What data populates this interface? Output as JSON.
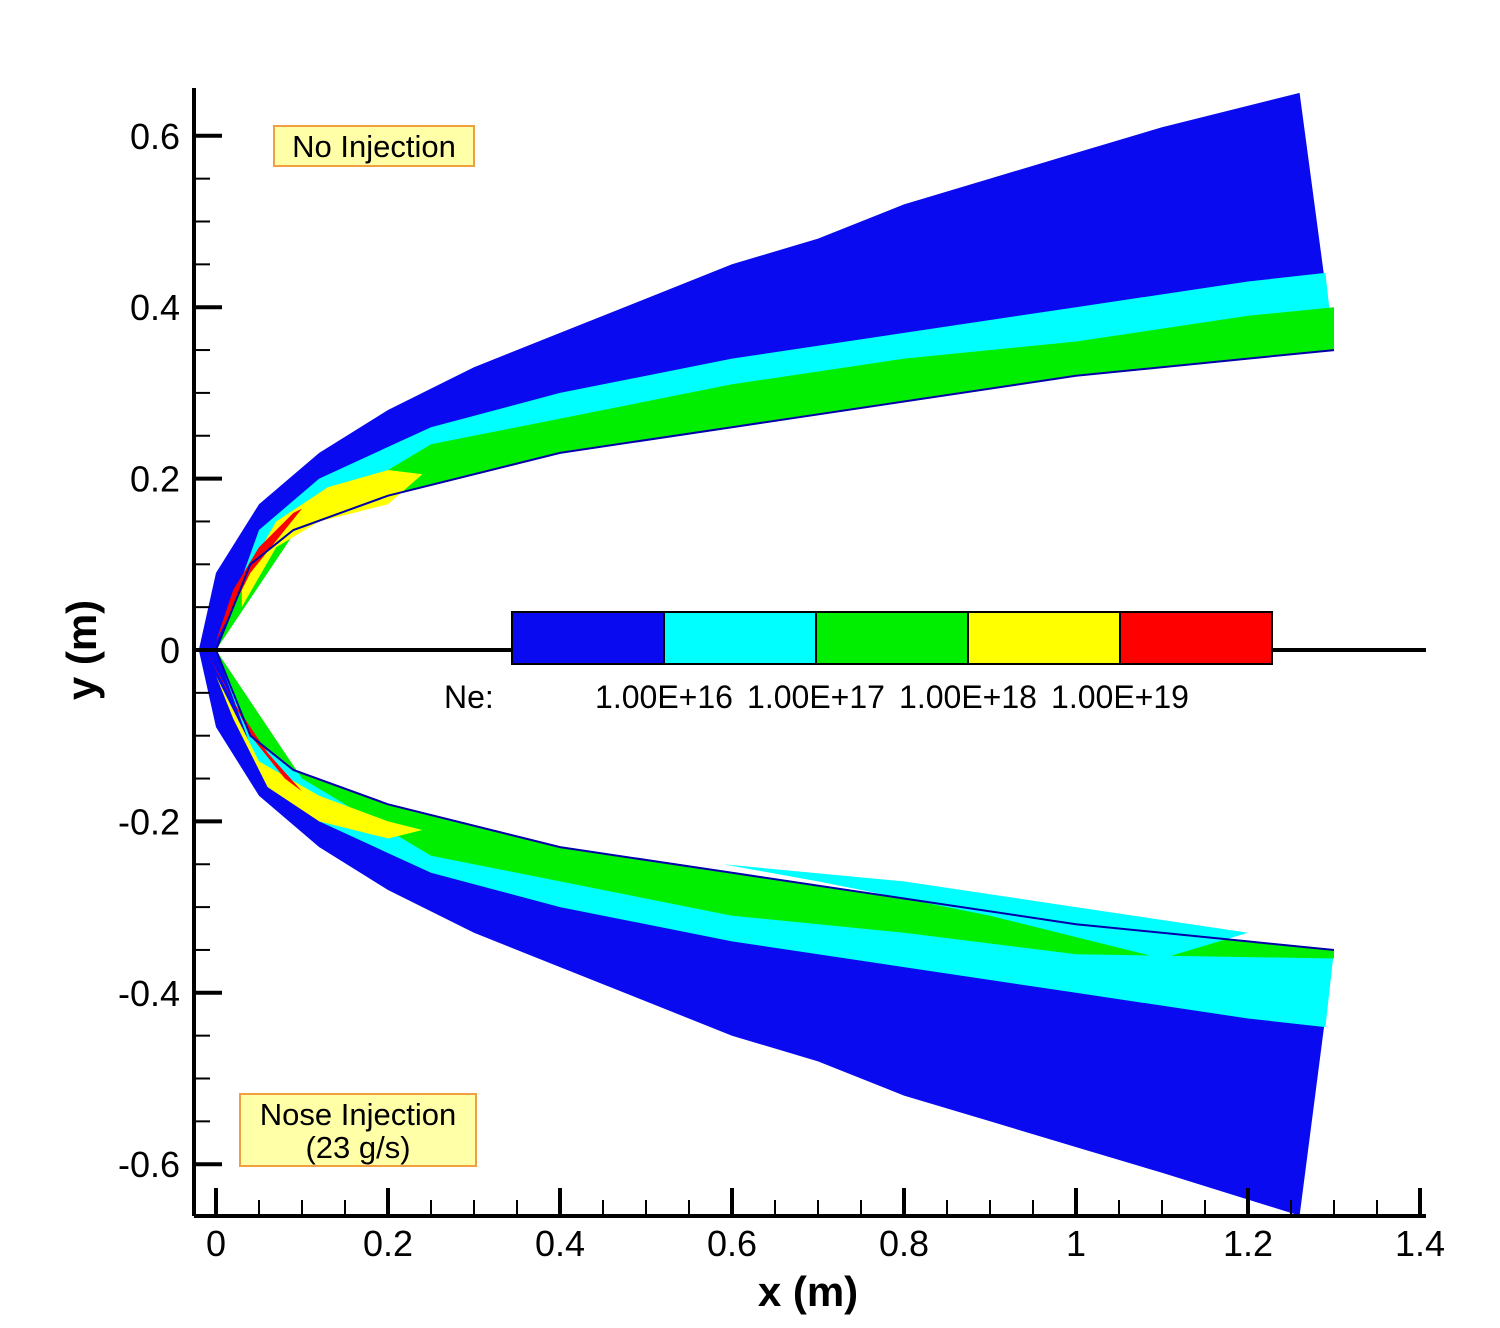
{
  "chart_data": {
    "type": "heatmap",
    "title": "",
    "xlabel": "x (m)",
    "ylabel": "y (m)",
    "xlim": [
      -0.03,
      1.4
    ],
    "ylim": [
      -0.65,
      0.65
    ],
    "x_ticks": [
      "0",
      "0.2",
      "0.4",
      "0.6",
      "0.8",
      "1",
      "1.2",
      "1.4"
    ],
    "y_ticks": [
      "0.6",
      "0.4",
      "0.2",
      "0",
      "-0.2",
      "-0.4",
      "-0.6"
    ],
    "grid": false,
    "colorbar": {
      "title": "Ne:",
      "colors": [
        "#0a0af0",
        "#00ffff",
        "#00ee00",
        "#ffff00",
        "#ff0000"
      ],
      "levels": [
        "1.00E+16",
        "1.00E+17",
        "1.00E+18",
        "1.00E+19"
      ]
    },
    "annotations": [
      {
        "text": "No Injection",
        "lines": [
          "No Injection"
        ],
        "x": 0.18,
        "y": 0.59
      },
      {
        "text": "Nose Injection (23 g/s)",
        "lines": [
          "Nose Injection",
          "(23 g/s)"
        ],
        "x": 0.16,
        "y": -0.52
      }
    ],
    "regions": {
      "no_injection_upper": {
        "shock_boundary": [
          [
            -0.02,
            0
          ],
          [
            0,
            0.09
          ],
          [
            0.05,
            0.17
          ],
          [
            0.12,
            0.23
          ],
          [
            0.2,
            0.28
          ],
          [
            0.3,
            0.33
          ],
          [
            0.4,
            0.37
          ],
          [
            0.5,
            0.41
          ],
          [
            0.6,
            0.45
          ],
          [
            0.7,
            0.48
          ],
          [
            0.8,
            0.52
          ],
          [
            0.9,
            0.55
          ],
          [
            1.0,
            0.58
          ],
          [
            1.1,
            0.61
          ],
          [
            1.26,
            0.65
          ]
        ],
        "body_surface": [
          [
            0,
            0
          ],
          [
            0.04,
            0.1
          ],
          [
            0.09,
            0.14
          ],
          [
            0.2,
            0.18
          ],
          [
            0.4,
            0.23
          ],
          [
            0.6,
            0.26
          ],
          [
            0.8,
            0.29
          ],
          [
            1.0,
            0.32
          ],
          [
            1.2,
            0.34
          ],
          [
            1.3,
            0.35
          ]
        ],
        "cyan_band_outer": [
          [
            0.05,
            0.14
          ],
          [
            0.12,
            0.2
          ],
          [
            0.25,
            0.26
          ],
          [
            0.4,
            0.3
          ],
          [
            0.6,
            0.34
          ],
          [
            0.8,
            0.37
          ],
          [
            1.0,
            0.4
          ],
          [
            1.2,
            0.43
          ],
          [
            1.29,
            0.44
          ]
        ],
        "green_band_outer": [
          [
            0.1,
            0.15
          ],
          [
            0.25,
            0.24
          ],
          [
            0.4,
            0.27
          ],
          [
            0.6,
            0.31
          ],
          [
            0.8,
            0.34
          ],
          [
            1.0,
            0.36
          ],
          [
            1.2,
            0.39
          ],
          [
            1.3,
            0.4
          ]
        ],
        "yellow_region": [
          [
            0.03,
            0.08
          ],
          [
            0.07,
            0.15
          ],
          [
            0.13,
            0.19
          ],
          [
            0.2,
            0.21
          ],
          [
            0.24,
            0.205
          ],
          [
            0.2,
            0.17
          ],
          [
            0.12,
            0.15
          ],
          [
            0.07,
            0.12
          ],
          [
            0.03,
            0.05
          ]
        ],
        "red_region": [
          [
            0,
            0.01
          ],
          [
            0.02,
            0.07
          ],
          [
            0.05,
            0.12
          ],
          [
            0.09,
            0.16
          ],
          [
            0.1,
            0.165
          ],
          [
            0.08,
            0.14
          ],
          [
            0.04,
            0.09
          ],
          [
            0.01,
            0.03
          ]
        ]
      },
      "nose_injection_lower": {
        "shock_boundary": [
          [
            -0.02,
            0
          ],
          [
            0,
            -0.09
          ],
          [
            0.05,
            -0.17
          ],
          [
            0.12,
            -0.23
          ],
          [
            0.2,
            -0.28
          ],
          [
            0.3,
            -0.33
          ],
          [
            0.4,
            -0.37
          ],
          [
            0.5,
            -0.41
          ],
          [
            0.6,
            -0.45
          ],
          [
            0.7,
            -0.48
          ],
          [
            0.8,
            -0.52
          ],
          [
            0.9,
            -0.55
          ],
          [
            1.0,
            -0.58
          ],
          [
            1.1,
            -0.61
          ],
          [
            1.26,
            -0.66
          ]
        ],
        "body_surface": [
          [
            0,
            0
          ],
          [
            0.04,
            -0.1
          ],
          [
            0.09,
            -0.14
          ],
          [
            0.2,
            -0.18
          ],
          [
            0.4,
            -0.23
          ],
          [
            0.6,
            -0.26
          ],
          [
            0.8,
            -0.29
          ],
          [
            1.0,
            -0.32
          ],
          [
            1.2,
            -0.34
          ],
          [
            1.3,
            -0.35
          ]
        ],
        "cyan_band_outer": [
          [
            0.05,
            -0.14
          ],
          [
            0.12,
            -0.2
          ],
          [
            0.25,
            -0.26
          ],
          [
            0.4,
            -0.3
          ],
          [
            0.6,
            -0.34
          ],
          [
            0.8,
            -0.37
          ],
          [
            1.0,
            -0.4
          ],
          [
            1.2,
            -0.43
          ],
          [
            1.29,
            -0.44
          ]
        ],
        "green_band_outer": [
          [
            0.1,
            -0.15
          ],
          [
            0.25,
            -0.24
          ],
          [
            0.4,
            -0.27
          ],
          [
            0.6,
            -0.31
          ],
          [
            0.8,
            -0.33
          ],
          [
            1.0,
            -0.355
          ],
          [
            1.3,
            -0.36
          ]
        ],
        "green_inner_cyan": [
          [
            0.59,
            -0.25
          ],
          [
            0.8,
            -0.27
          ],
          [
            1.0,
            -0.3
          ],
          [
            1.2,
            -0.33
          ],
          [
            1.1,
            -0.36
          ],
          [
            0.9,
            -0.31
          ],
          [
            0.7,
            -0.27
          ]
        ],
        "yellow_region": [
          [
            0.0,
            -0.03
          ],
          [
            0.05,
            -0.13
          ],
          [
            0.12,
            -0.17
          ],
          [
            0.2,
            -0.2
          ],
          [
            0.24,
            -0.21
          ],
          [
            0.2,
            -0.22
          ],
          [
            0.12,
            -0.2
          ],
          [
            0.06,
            -0.16
          ],
          [
            0.02,
            -0.08
          ]
        ],
        "red_region": [
          [
            -0.01,
            -0.005
          ],
          [
            0.02,
            -0.06
          ],
          [
            0.06,
            -0.12
          ],
          [
            0.1,
            -0.165
          ],
          [
            0.08,
            -0.15
          ],
          [
            0.04,
            -0.1
          ],
          [
            0.01,
            -0.04
          ]
        ]
      }
    }
  }
}
